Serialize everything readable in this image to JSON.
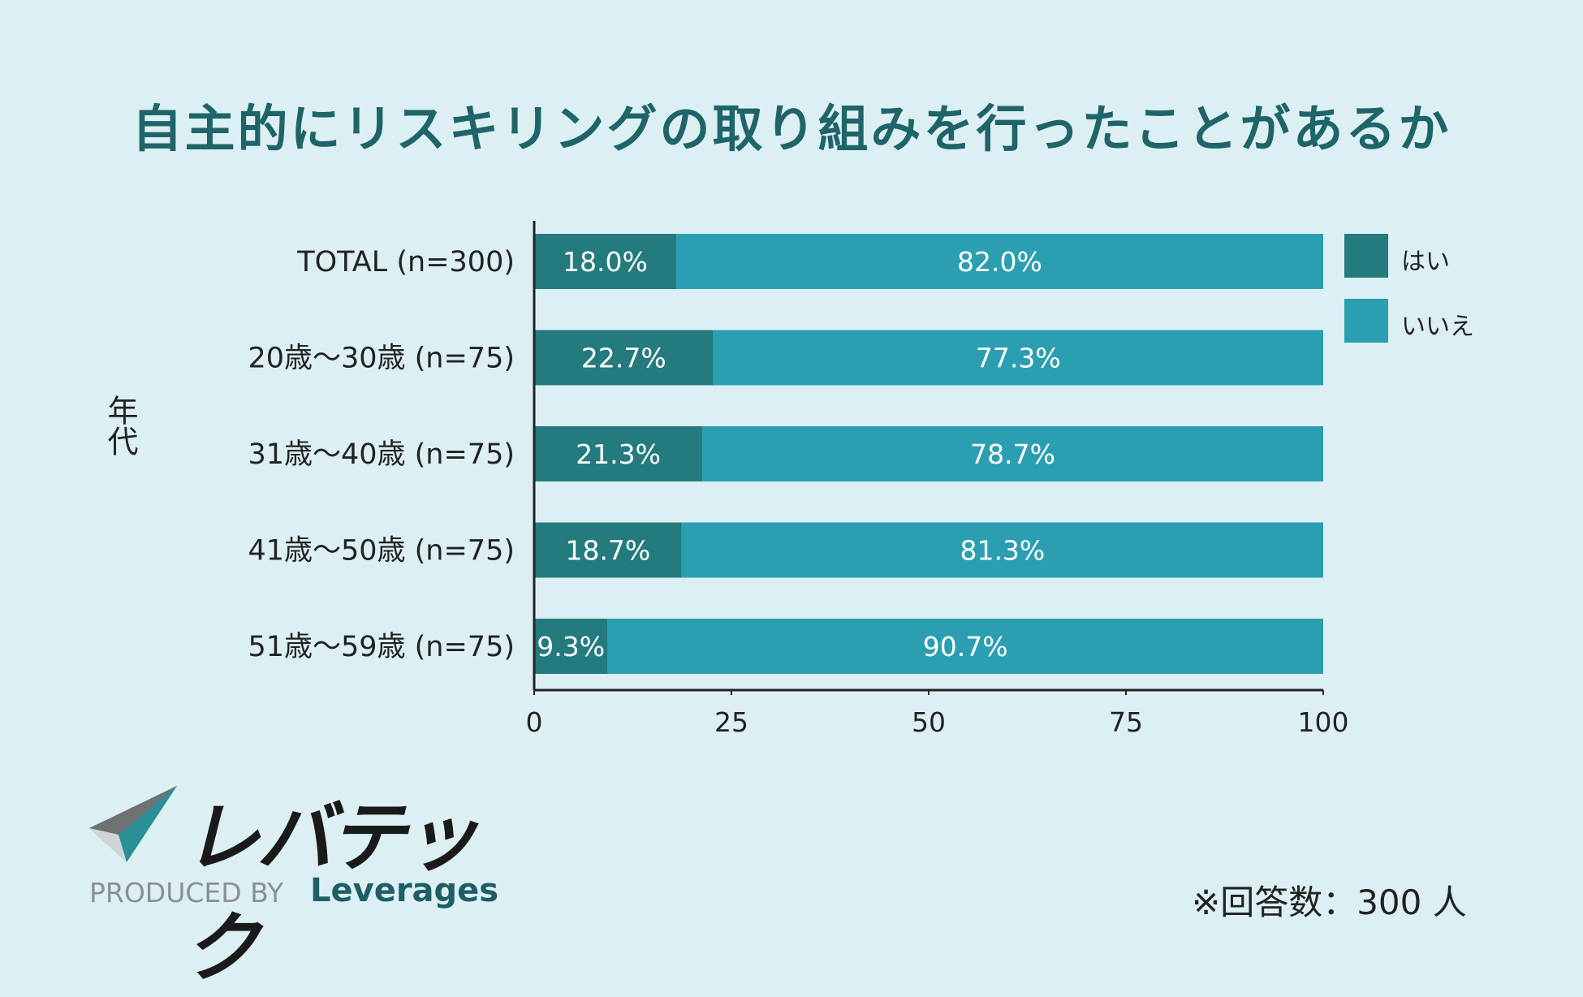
{
  "chart_data": {
    "type": "bar",
    "orientation": "horizontal",
    "stacked": true,
    "title": "自主的にリスキリングの取り組みを行ったことがあるか",
    "ylabel": "年代",
    "categories": [
      "TOTAL (n=300)",
      "20歳〜30歳 (n=75)",
      "31歳〜40歳 (n=75)",
      "41歳〜50歳 (n=75)",
      "51歳〜59歳 (n=75)"
    ],
    "series": [
      {
        "name": "はい",
        "color": "#237b7e",
        "values": [
          18.0,
          22.7,
          21.3,
          18.7,
          9.3
        ]
      },
      {
        "name": "いいえ",
        "color": "#2b9fb1",
        "values": [
          82.0,
          77.3,
          78.7,
          81.3,
          90.7
        ]
      }
    ],
    "xlim": [
      0,
      100
    ],
    "xticks": [
      0,
      25,
      50,
      75,
      100
    ],
    "value_suffix": "%",
    "legend_position": "right"
  },
  "footnote": "※回答数：300 人",
  "logo": {
    "wordmark": "レバテック",
    "produced_by": "PRODUCED BY",
    "brand": "Leverages"
  }
}
